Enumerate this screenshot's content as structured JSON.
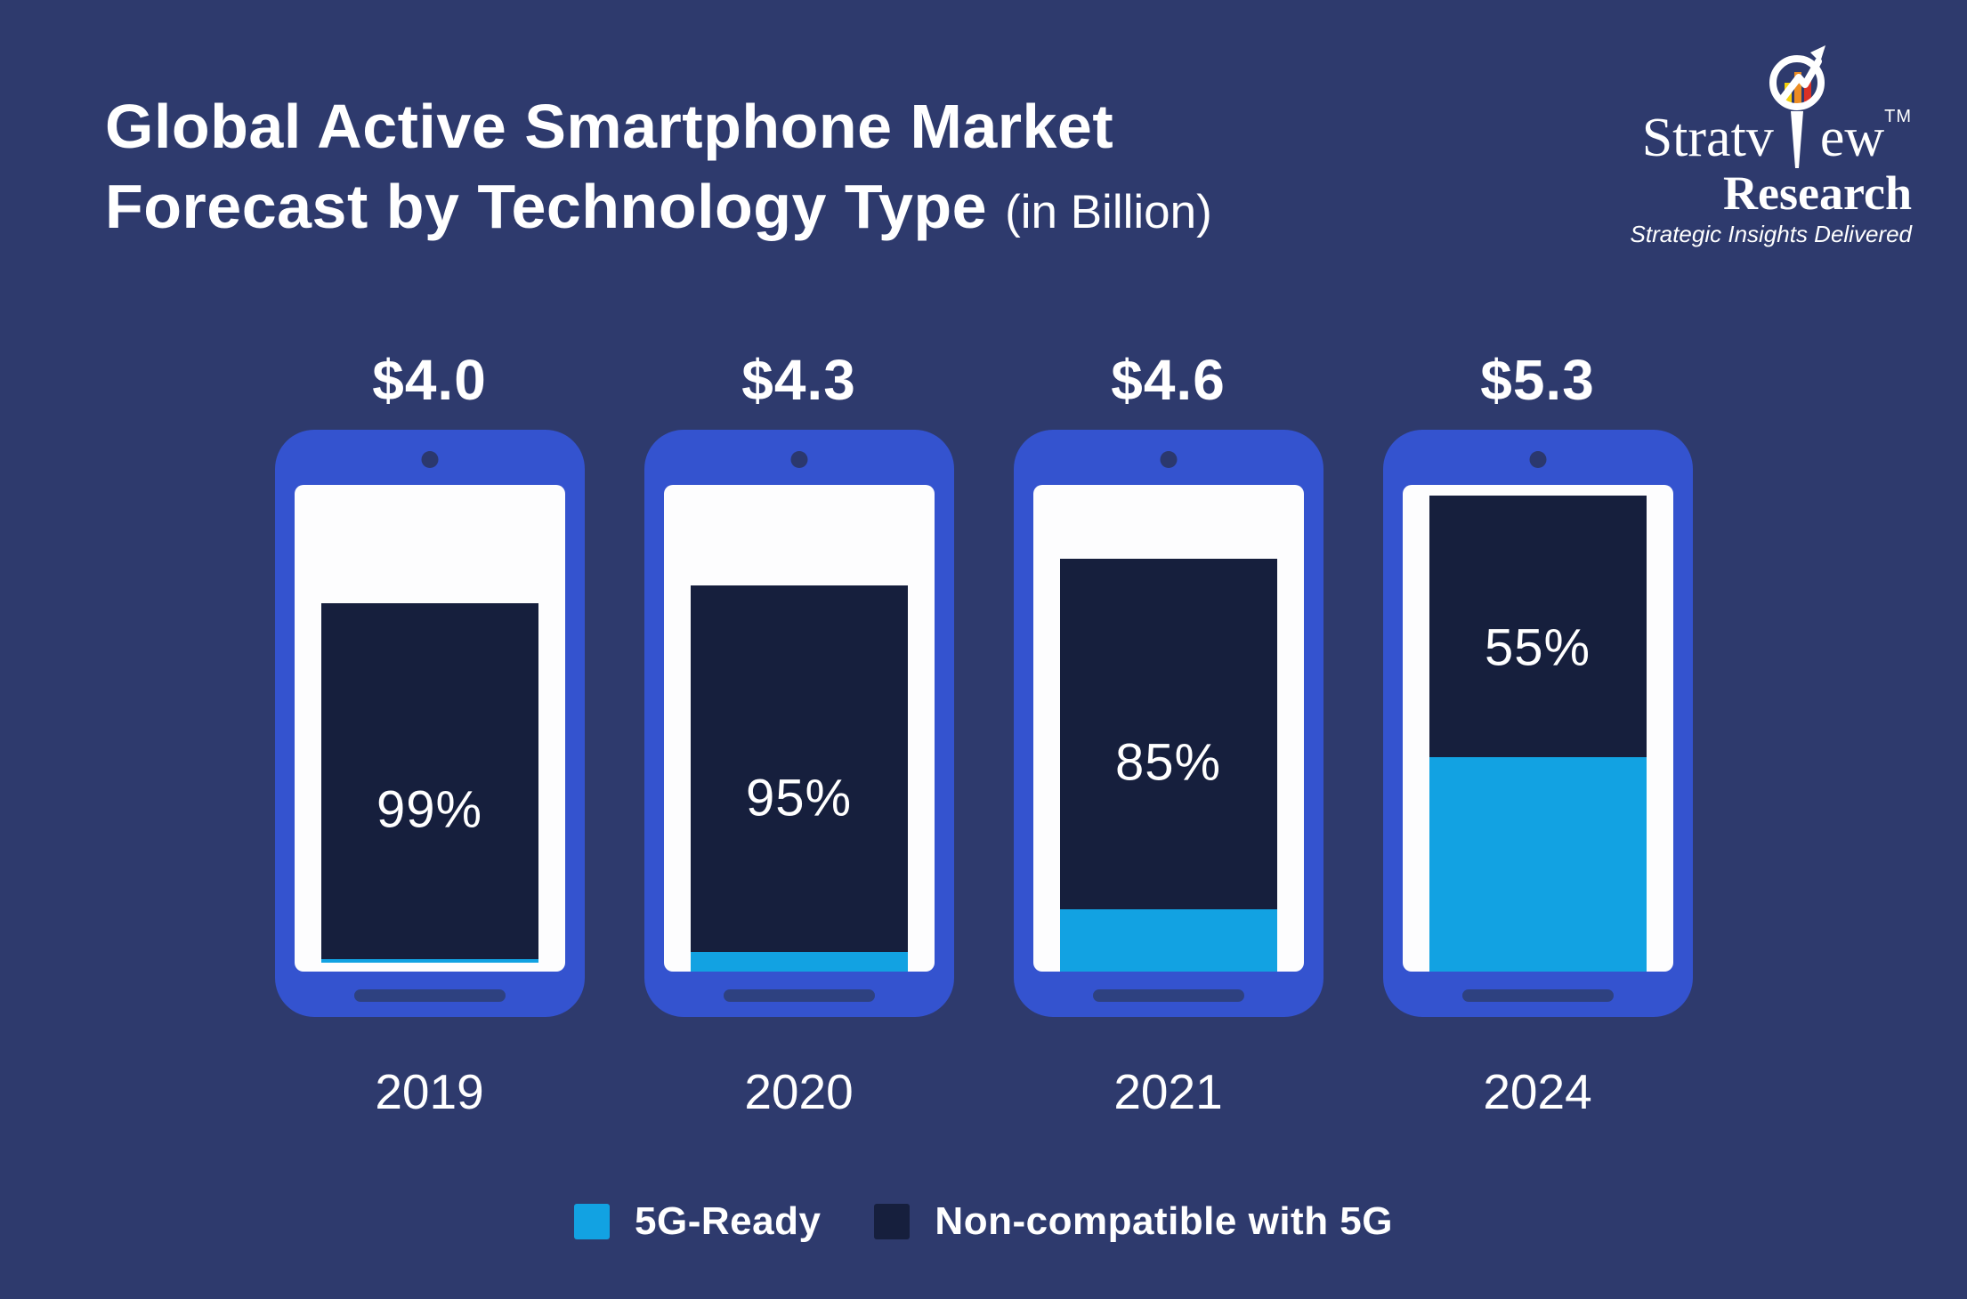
{
  "title": {
    "line1": "Global Active Smartphone Market",
    "line2": "Forecast by Technology Type",
    "suffix": "(in Billion)"
  },
  "logo": {
    "brand_prefix": "Stratv",
    "brand_suffix": "ew",
    "trademark": "TM",
    "name": "Research",
    "tagline": "Strategic Insights Delivered",
    "icon": "magnifier-growth-chart-icon",
    "bar_colors": [
      "#f5d00a",
      "#ec8c22",
      "#d93025"
    ]
  },
  "colors": {
    "bg": "#2e3a6d",
    "frame": "#3453cf",
    "non5g": "#161f3d",
    "fiveg": "#12a2e2",
    "pill": "#2e4180",
    "dot": "#2b386e"
  },
  "legend": [
    {
      "label": "5G-Ready",
      "color": "#12a2e2"
    },
    {
      "label": "Non-compatible with 5G",
      "color": "#161f3d"
    }
  ],
  "chart_data": {
    "type": "bar",
    "stacked": true,
    "pictogram": "smartphone",
    "title": "Global Active Smartphone Market Forecast by Technology Type",
    "unit": "USD Billion",
    "max_value": 5.3,
    "legend_position": "bottom",
    "categories": [
      "2019",
      "2020",
      "2021",
      "2024"
    ],
    "series": [
      {
        "name": "Non-compatible with 5G",
        "percentages": [
          99,
          95,
          85,
          55
        ]
      },
      {
        "name": "5G-Ready",
        "percentages": [
          1,
          5,
          15,
          45
        ]
      }
    ],
    "phones": [
      {
        "year": "2019",
        "total_label": "$4.0",
        "total_value": 4.0,
        "non5g_pct": 99,
        "non5g_label": "99%"
      },
      {
        "year": "2020",
        "total_label": "$4.3",
        "total_value": 4.3,
        "non5g_pct": 95,
        "non5g_label": "95%"
      },
      {
        "year": "2021",
        "total_label": "$4.6",
        "total_value": 4.6,
        "non5g_pct": 85,
        "non5g_label": "85%"
      },
      {
        "year": "2024",
        "total_label": "$5.3",
        "total_value": 5.3,
        "non5g_pct": 55,
        "non5g_label": "55%"
      }
    ]
  }
}
